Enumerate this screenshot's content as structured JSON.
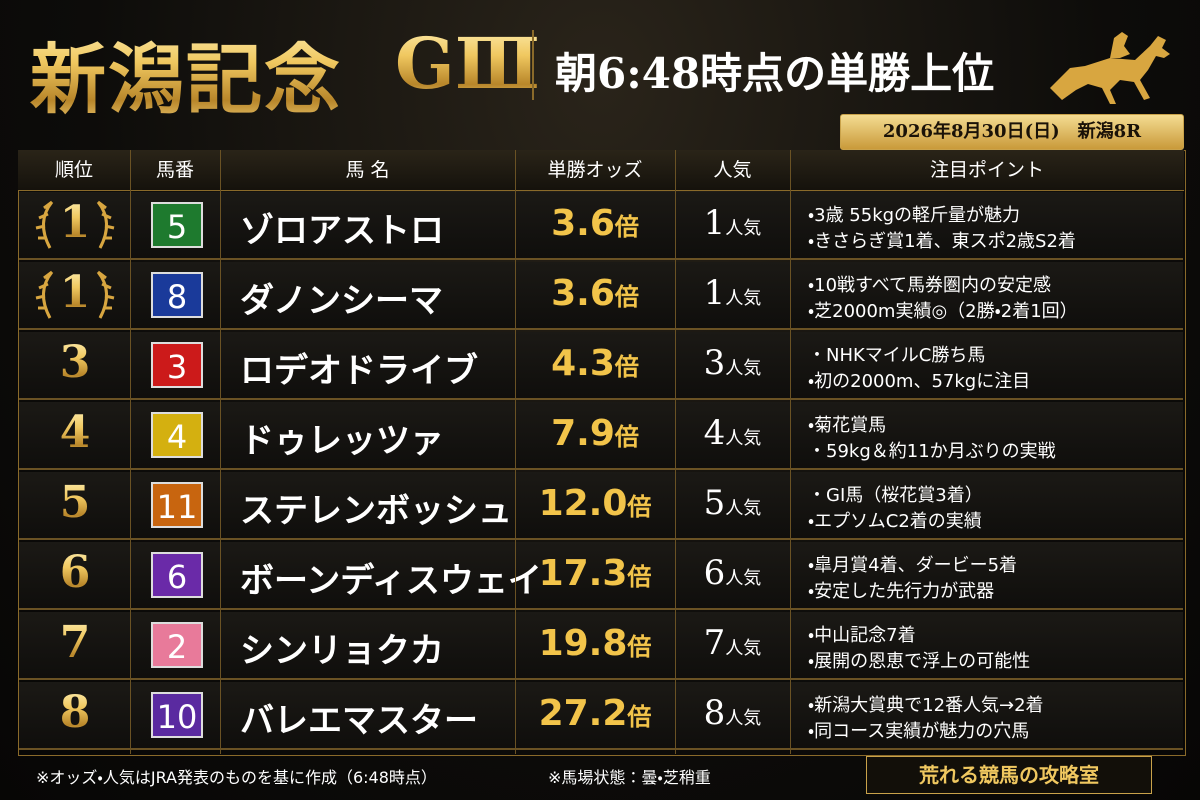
{
  "header": {
    "title": "新潟記念",
    "grade": "GⅢ",
    "subtitle": "朝6:48時点の単勝上位",
    "date": "2026年8月30日(日)　新潟8R"
  },
  "table": {
    "columns": [
      "順位",
      "馬番",
      "馬 名",
      "単勝オッズ",
      "人気",
      "注目ポイント"
    ],
    "rows": [
      {
        "rank": "1",
        "number": "5",
        "color": "#1e7a2e",
        "name": "ゾロアストロ",
        "odds": "3.6",
        "odds_unit": "倍",
        "popularity": "1",
        "popularity_unit": "人気",
        "points": [
          "・3歳 55kgの軽斤量が魅力",
          "・きさらぎ賞1着、東スポ2歳S2着"
        ]
      },
      {
        "rank": "1",
        "number": "8",
        "color": "#1a3a9a",
        "name": "ダノンシーマ",
        "odds": "3.6",
        "odds_unit": "倍",
        "popularity": "1",
        "popularity_unit": "人気",
        "points": [
          "・10戦すべて馬券圏内の安定感",
          "・芝2000m実績◎（2勝・2着1回）"
        ]
      },
      {
        "rank": "3",
        "number": "3",
        "color": "#cc1a1a",
        "name": "ロデオドライブ",
        "odds": "4.3",
        "odds_unit": "倍",
        "popularity": "3",
        "popularity_unit": "人気",
        "points": [
          "・NHKマイルC勝ち馬",
          "・初の2000m、57kgに注目"
        ]
      },
      {
        "rank": "4",
        "number": "4",
        "color": "#d4b010",
        "name": "ドゥレッツァ",
        "odds": "7.9",
        "odds_unit": "倍",
        "popularity": "4",
        "popularity_unit": "人気",
        "points": [
          "・菊花賞馬",
          "・59kg＆約11か月ぶりの実戦"
        ]
      },
      {
        "rank": "5",
        "number": "11",
        "color": "#c8650f",
        "name": "ステレンボッシュ",
        "odds": "12.0",
        "odds_unit": "倍",
        "popularity": "5",
        "popularity_unit": "人気",
        "points": [
          "・GⅠ馬（桜花賞3着）",
          "・エプソムC2着の実績"
        ]
      },
      {
        "rank": "6",
        "number": "6",
        "color": "#6a2aa8",
        "name": "ボーンディスウェイ",
        "odds": "17.3",
        "odds_unit": "倍",
        "popularity": "6",
        "popularity_unit": "人気",
        "points": [
          "・皐月賞4着、ダービー5着",
          "・安定した先行力が武器"
        ]
      },
      {
        "rank": "7",
        "number": "2",
        "color": "#e87a9a",
        "name": "シンリョクカ",
        "odds": "19.8",
        "odds_unit": "倍",
        "popularity": "7",
        "popularity_unit": "人気",
        "points": [
          "・中山記念7着",
          "・展開の恩恵で浮上の可能性"
        ]
      },
      {
        "rank": "8",
        "number": "10",
        "color": "#5a2aa0",
        "name": "バレエマスター",
        "odds": "27.2",
        "odds_unit": "倍",
        "popularity": "8",
        "popularity_unit": "人気",
        "points": [
          "・新潟大賞典で12番人気→2着",
          "・同コース実績が魅力の穴馬"
        ]
      }
    ]
  },
  "footer": {
    "notes": [
      "※オッズ・人気はJRA発表のものを基に作成（6:48時点）",
      "※馬場状態：曇・芝稍重"
    ],
    "brand": "荒れる競馬の攻略室"
  }
}
